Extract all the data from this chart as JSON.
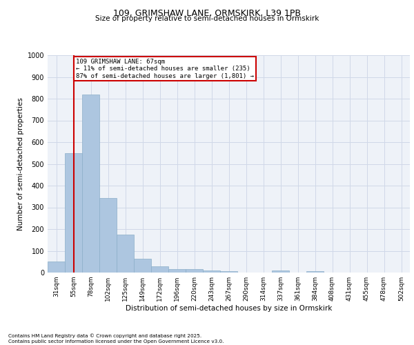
{
  "title1": "109, GRIMSHAW LANE, ORMSKIRK, L39 1PB",
  "title2": "Size of property relative to semi-detached houses in Ormskirk",
  "xlabel": "Distribution of semi-detached houses by size in Ormskirk",
  "ylabel": "Number of semi-detached properties",
  "categories": [
    "31sqm",
    "55sqm",
    "78sqm",
    "102sqm",
    "125sqm",
    "149sqm",
    "172sqm",
    "196sqm",
    "220sqm",
    "243sqm",
    "267sqm",
    "290sqm",
    "314sqm",
    "337sqm",
    "361sqm",
    "384sqm",
    "408sqm",
    "431sqm",
    "455sqm",
    "478sqm",
    "502sqm"
  ],
  "values": [
    52,
    550,
    820,
    343,
    175,
    65,
    28,
    17,
    15,
    8,
    5,
    0,
    0,
    10,
    0,
    7,
    0,
    0,
    0,
    0,
    0
  ],
  "bar_color": "#adc6e0",
  "bar_edge_color": "#8aaec8",
  "annotation_text": "109 GRIMSHAW LANE: 67sqm\n← 11% of semi-detached houses are smaller (235)\n87% of semi-detached houses are larger (1,801) →",
  "annotation_box_color": "#ffffff",
  "annotation_border_color": "#cc0000",
  "vline_color": "#cc0000",
  "ylim": [
    0,
    1000
  ],
  "yticks": [
    0,
    100,
    200,
    300,
    400,
    500,
    600,
    700,
    800,
    900,
    1000
  ],
  "grid_color": "#d0d8e8",
  "background_color": "#eef2f8",
  "footer_line1": "Contains HM Land Registry data © Crown copyright and database right 2025.",
  "footer_line2": "Contains public sector information licensed under the Open Government Licence v3.0."
}
